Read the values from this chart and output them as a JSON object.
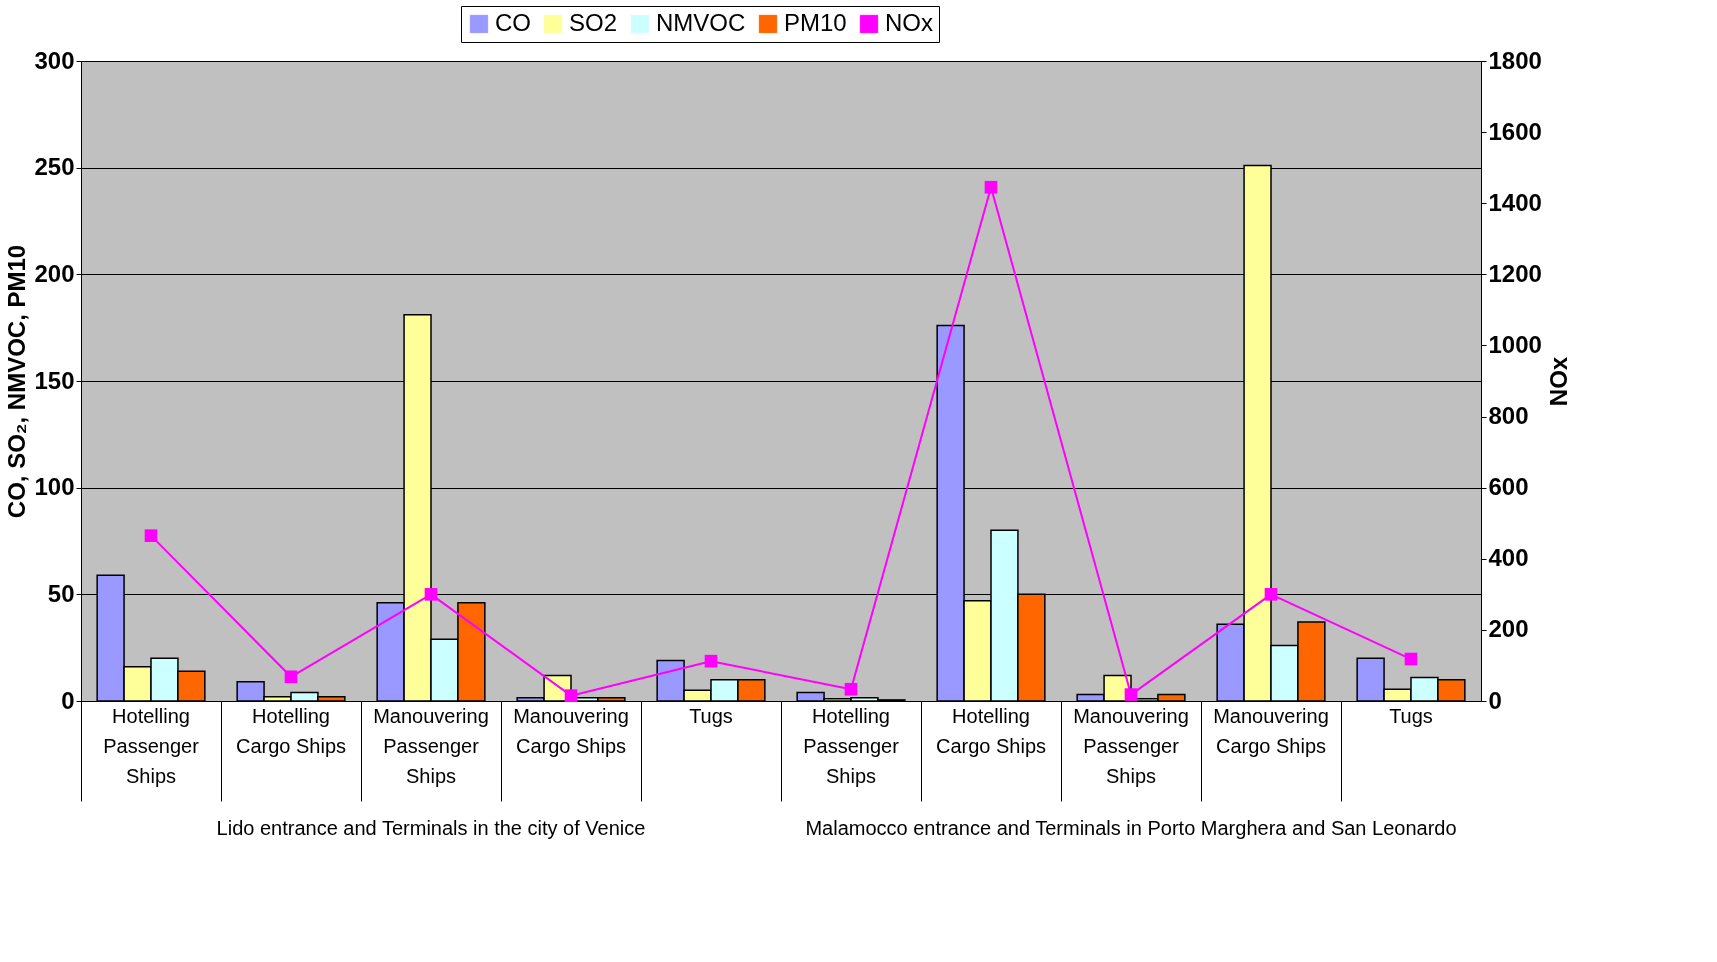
{
  "chart_data": {
    "type": "bar",
    "ylabel": "CO, SO₂, NMVOC, PM10",
    "y2label": "NOx",
    "categories": [
      "Hotelling Passenger Ships",
      "Hotelling Cargo Ships",
      "Manouvering Passenger Ships",
      "Manouvering Cargo Ships",
      "Tugs",
      "Hotelling Passenger Ships",
      "Hotelling Cargo Ships",
      "Manouvering Passenger Ships",
      "Manouvering Cargo Ships",
      "Tugs"
    ],
    "series": [
      {
        "name": "CO",
        "color": "#9999ff",
        "values": [
          59,
          9,
          46,
          1.5,
          19,
          4,
          176,
          3,
          36,
          20
        ]
      },
      {
        "name": "SO2",
        "color": "#ffff99",
        "values": [
          16,
          2,
          181,
          12,
          5,
          1,
          47,
          12,
          251,
          5.5
        ]
      },
      {
        "name": "NMVOC",
        "color": "#ccffff",
        "values": [
          20,
          4,
          29,
          1.5,
          10,
          1.5,
          80,
          1,
          26,
          11
        ]
      },
      {
        "name": "PM10",
        "color": "#ff6600",
        "values": [
          14,
          2,
          46,
          1.5,
          10,
          0.5,
          50,
          3,
          37,
          10
        ]
      },
      {
        "name": "NOx",
        "color": "#ff00ff",
        "type": "line",
        "axis": "y2",
        "marker": "square",
        "values": [
          465,
          68,
          300,
          15,
          112,
          33,
          1445,
          18,
          300,
          118
        ]
      }
    ],
    "ylim": [
      0,
      300
    ],
    "yticks": [
      0,
      50,
      100,
      150,
      200,
      250,
      300
    ],
    "y2lim": [
      0,
      1800
    ],
    "y2ticks": [
      0,
      200,
      400,
      600,
      800,
      1000,
      1200,
      1400,
      1600,
      1800
    ],
    "grid": "y",
    "legend": "top",
    "annotations": [
      "Lido entrance and Terminals in the city of Venice",
      "Malamocco entrance and Terminals in Porto Marghera and San Leonardo"
    ]
  }
}
